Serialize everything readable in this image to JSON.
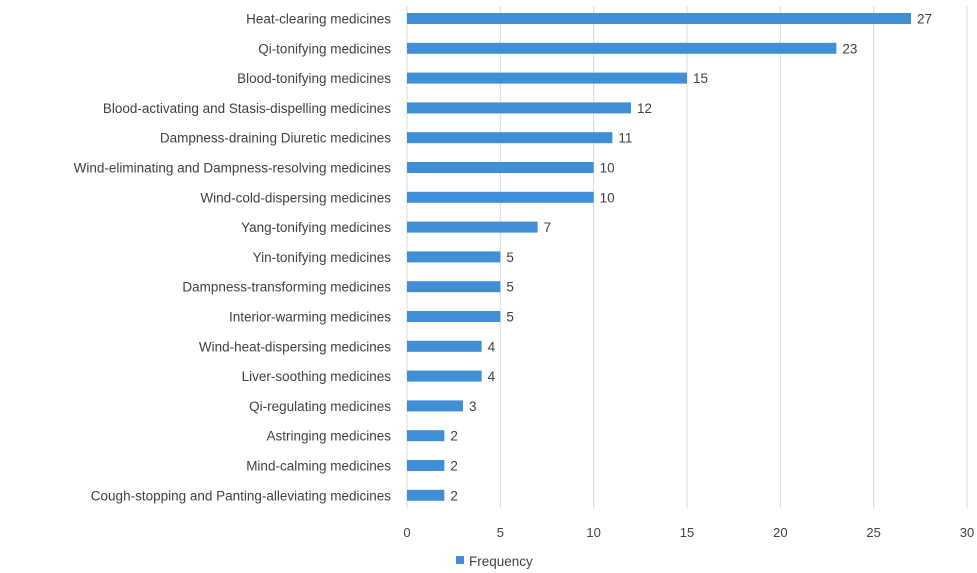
{
  "chart_data": {
    "type": "bar",
    "orientation": "horizontal",
    "categories": [
      "Heat-clearing medicines",
      "Qi-tonifying medicines",
      "Blood-tonifying medicines",
      "Blood-activating and Stasis-dispelling medicines",
      "Dampness-draining Diuretic medicines",
      "Wind-eliminating and Dampness-resolving medicines",
      "Wind-cold-dispersing medicines",
      "Yang-tonifying medicines",
      "Yin-tonifying medicines",
      "Dampness-transforming medicines",
      "Interior-warming medicines",
      "Wind-heat-dispersing medicines",
      "Liver-soothing medicines",
      "Qi-regulating medicines",
      "Astringing medicines",
      "Mind-calming medicines",
      "Cough-stopping and Panting-alleviating medicines"
    ],
    "series": [
      {
        "name": "Frequency",
        "color": "#3f8fd6",
        "values": [
          27,
          23,
          15,
          12,
          11,
          10,
          10,
          7,
          5,
          5,
          5,
          4,
          4,
          3,
          2,
          2,
          2
        ]
      }
    ],
    "xlim": [
      0,
      30
    ],
    "xticks": [
      0,
      5,
      10,
      15,
      20,
      25,
      30
    ],
    "grid": true,
    "legend": "bottom",
    "data_labels": true,
    "title": "",
    "xlabel": "",
    "ylabel": ""
  }
}
